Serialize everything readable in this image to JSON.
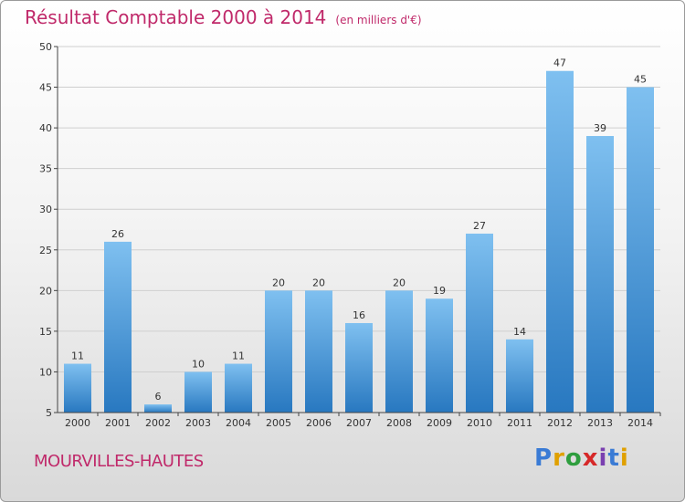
{
  "header": {
    "title": "Résultat Comptable 2000 à 2014",
    "unit": "(en milliers d'€)"
  },
  "footer": {
    "place": "MOURVILLES-HAUTES",
    "logo_letters": [
      "P",
      "r",
      "o",
      "x",
      "i",
      "t",
      "i"
    ],
    "logo_colors": [
      "#3a7bd5",
      "#e0a000",
      "#2e9e3e",
      "#d62828",
      "#7a3fb0",
      "#3a7bd5",
      "#e0a000"
    ]
  },
  "colors": {
    "bar_top": "#7fc0f0",
    "bar_bottom": "#2878c0",
    "axis": "#444444",
    "grid": "#cfcfcf"
  },
  "chart_data": {
    "type": "bar",
    "categories": [
      "2000",
      "2001",
      "2002",
      "2003",
      "2004",
      "2005",
      "2006",
      "2007",
      "2008",
      "2009",
      "2010",
      "2011",
      "2012",
      "2013",
      "2014"
    ],
    "values": [
      11,
      26,
      6,
      10,
      11,
      20,
      20,
      16,
      20,
      19,
      27,
      14,
      47,
      39,
      45
    ],
    "ylim": [
      5,
      50
    ],
    "yticks": [
      5,
      10,
      15,
      20,
      25,
      30,
      35,
      40,
      45,
      50
    ],
    "grid": true,
    "legend": "none"
  }
}
